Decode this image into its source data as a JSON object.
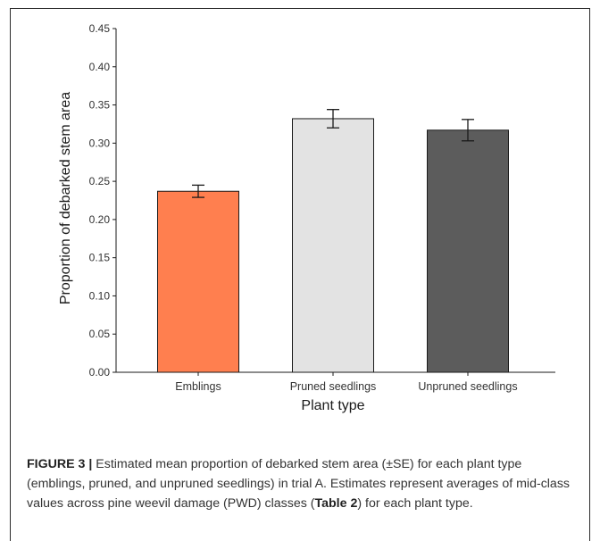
{
  "chart_data": {
    "type": "bar",
    "categories": [
      "Emblings",
      "Pruned seedlings",
      "Unpruned seedlings"
    ],
    "values": [
      0.237,
      0.332,
      0.317
    ],
    "error": [
      0.008,
      0.012,
      0.014
    ],
    "colors": [
      "#ff7f4f",
      "#e3e3e3",
      "#5c5c5c"
    ],
    "xlabel": "Plant type",
    "ylabel": "Proportion of debarked stem area",
    "ylim": [
      0,
      0.45
    ],
    "yticks": [
      "0.00",
      "0.05",
      "0.10",
      "0.15",
      "0.20",
      "0.25",
      "0.30",
      "0.35",
      "0.40",
      "0.45"
    ],
    "grid": false
  },
  "caption": {
    "label": "FIGURE 3 |",
    "text_1": " Estimated mean proportion of debarked stem area (±SE) for each plant type (emblings, pruned, and unpruned seedlings) in trial A. Estimates represent averages of mid-class values across pine weevil damage (PWD) classes (",
    "table_ref": "Table 2",
    "text_2": ") for each plant type."
  }
}
